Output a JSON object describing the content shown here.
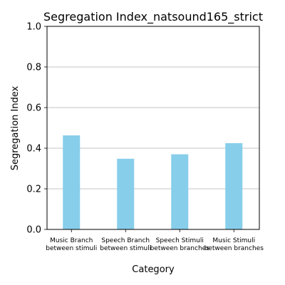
{
  "chart_data": {
    "type": "bar",
    "title": "Segregation Index_natsound165_strict",
    "xlabel": "Category",
    "ylabel": "Segregation Index",
    "categories": [
      [
        "Music Branch",
        "between stimuli"
      ],
      [
        "Speech Branch",
        "between stimuli"
      ],
      [
        "Speech Stimuli",
        "between branches"
      ],
      [
        "Music Stimuli",
        "between branches"
      ]
    ],
    "values": [
      0.463,
      0.348,
      0.37,
      0.425
    ],
    "ylim": [
      0,
      1.0
    ],
    "yticks": [
      "0.0",
      "0.2",
      "0.4",
      "0.6",
      "0.8",
      "1.0"
    ],
    "grid": "horizontal",
    "bar_color": "#87ceeb"
  }
}
